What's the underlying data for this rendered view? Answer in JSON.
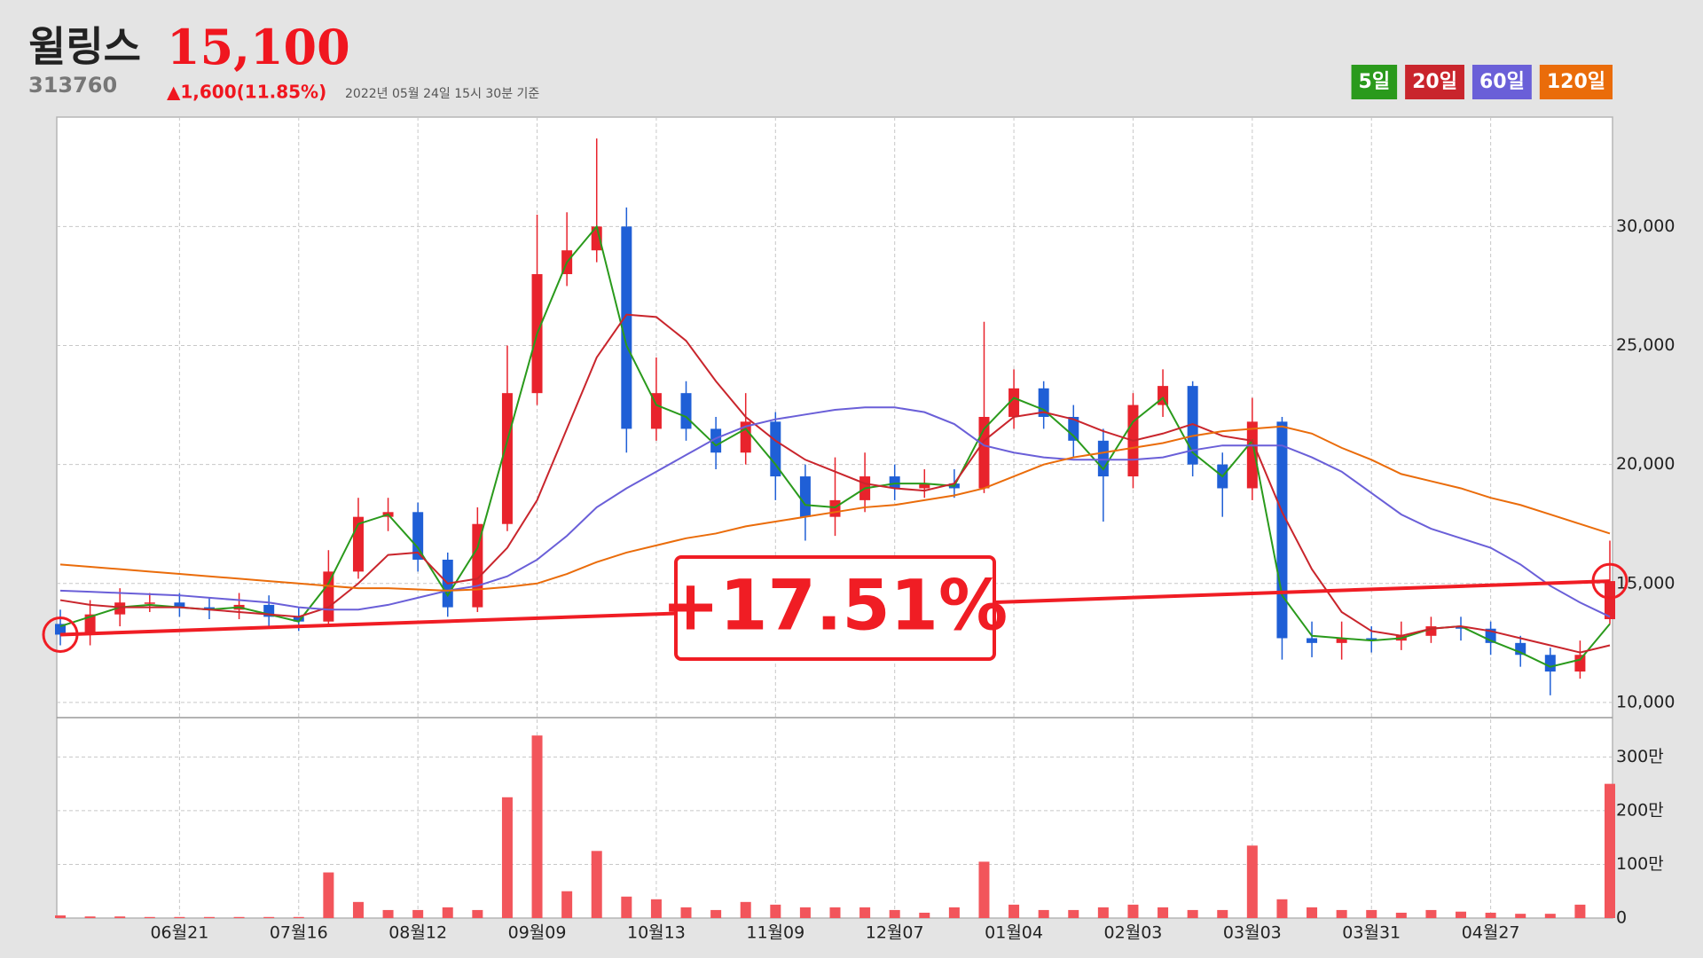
{
  "chart_data": {
    "type": "candlestick",
    "title": "윌링스",
    "price": "15,100",
    "code": "313760",
    "change": "▲1,600(11.85%)",
    "timestamp": "2022년 05월 24일 15시 30분 기준",
    "categories": [
      null,
      null,
      null,
      null,
      "06월21",
      null,
      null,
      null,
      "07월16",
      null,
      null,
      null,
      "08월12",
      null,
      null,
      null,
      "09월09",
      null,
      null,
      null,
      "10월13",
      null,
      null,
      null,
      "11월09",
      null,
      null,
      null,
      "12월07",
      null,
      null,
      null,
      "01월04",
      null,
      null,
      null,
      "02월03",
      null,
      null,
      null,
      "03월03",
      null,
      null,
      null,
      "03월31",
      null,
      null,
      null,
      "04월27",
      null,
      null,
      null,
      null
    ],
    "open": [
      13300,
      12850,
      13700,
      14200,
      14200,
      14000,
      13900,
      14100,
      13600,
      13400,
      15500,
      17800,
      18000,
      16000,
      14000,
      17500,
      23000,
      28000,
      29000,
      30000,
      21500,
      23000,
      21500,
      20500,
      21800,
      19500,
      17800,
      18500,
      19500,
      19000,
      19200,
      19000,
      22000,
      23200,
      22000,
      21000,
      19500,
      22500,
      23300,
      20000,
      19000,
      21800,
      12700,
      12500,
      12700,
      12600,
      12800,
      13200,
      13100,
      12500,
      12000,
      11300,
      13500
    ],
    "high": [
      13900,
      14300,
      14800,
      14600,
      14600,
      14400,
      14600,
      14500,
      14000,
      16400,
      18600,
      18600,
      18400,
      16300,
      18200,
      25000,
      30500,
      30600,
      33700,
      30800,
      24500,
      23500,
      22000,
      23000,
      22200,
      20000,
      20300,
      20500,
      20000,
      19800,
      19800,
      26000,
      24000,
      23500,
      22500,
      21500,
      23000,
      24000,
      23500,
      20500,
      22800,
      22000,
      13400,
      13400,
      13200,
      13400,
      13600,
      13600,
      13400,
      12800,
      12300,
      12600,
      16800
    ],
    "low": [
      12400,
      12400,
      13200,
      13800,
      13600,
      13500,
      13500,
      13200,
      13000,
      13200,
      15200,
      17200,
      15500,
      13600,
      13800,
      17200,
      22500,
      27500,
      28500,
      20500,
      21000,
      21000,
      19800,
      20000,
      18500,
      16800,
      17000,
      18000,
      18500,
      18600,
      18600,
      18800,
      21500,
      21500,
      20300,
      17600,
      19000,
      22000,
      19500,
      17800,
      18500,
      11800,
      11900,
      11800,
      12100,
      12200,
      12500,
      12600,
      12000,
      11500,
      10300,
      11000,
      13300
    ],
    "close": [
      12850,
      13700,
      14200,
      14200,
      14000,
      13900,
      14100,
      13600,
      13400,
      15500,
      17800,
      18000,
      16000,
      14000,
      17500,
      23000,
      28000,
      29000,
      30000,
      21500,
      23000,
      21500,
      20500,
      21800,
      19500,
      17800,
      18500,
      19500,
      19000,
      19200,
      19000,
      22000,
      23200,
      22000,
      21000,
      19500,
      22500,
      23300,
      20000,
      19000,
      21800,
      12700,
      12500,
      12700,
      12600,
      12800,
      13200,
      13100,
      12500,
      12000,
      11300,
      12000,
      15100
    ],
    "up_color": "#e8232c",
    "down_color": "#1f5fd6",
    "series": [
      {
        "name": "5일",
        "color": "#2a9a1c",
        "values": [
          13200,
          13600,
          14000,
          14100,
          14000,
          13900,
          14000,
          13700,
          13400,
          15000,
          17500,
          17900,
          16500,
          14500,
          16500,
          21000,
          25500,
          28500,
          30000,
          25000,
          22500,
          22000,
          20800,
          21500,
          20000,
          18300,
          18200,
          19000,
          19200,
          19200,
          19100,
          21500,
          22800,
          22300,
          21200,
          19800,
          21800,
          22800,
          20500,
          19500,
          21000,
          14500,
          12800,
          12700,
          12600,
          12700,
          13100,
          13200,
          12600,
          12100,
          11500,
          11800,
          13300
        ]
      },
      {
        "name": "20일",
        "color": "#c9252c",
        "values": [
          14300,
          14100,
          14000,
          14000,
          14000,
          13900,
          13800,
          13700,
          13600,
          14000,
          15000,
          16200,
          16300,
          15000,
          15200,
          16500,
          18500,
          21500,
          24500,
          26300,
          26200,
          25200,
          23500,
          22000,
          21000,
          20200,
          19700,
          19200,
          19000,
          18900,
          19200,
          21000,
          22000,
          22200,
          21900,
          21400,
          21000,
          21300,
          21700,
          21200,
          21000,
          18000,
          15600,
          13800,
          13000,
          12800,
          13100,
          13200,
          13000,
          12700,
          12400,
          12100,
          12400
        ]
      },
      {
        "name": "60일",
        "color": "#6a5fd8",
        "values": [
          14700,
          14650,
          14600,
          14550,
          14500,
          14400,
          14300,
          14200,
          14000,
          13900,
          13900,
          14100,
          14400,
          14700,
          14900,
          15300,
          16000,
          17000,
          18200,
          19000,
          19700,
          20400,
          21100,
          21600,
          21900,
          22100,
          22300,
          22400,
          22400,
          22200,
          21700,
          20800,
          20500,
          20300,
          20200,
          20200,
          20200,
          20300,
          20600,
          20800,
          20800,
          20800,
          20300,
          19700,
          18800,
          17900,
          17300,
          16900,
          16500,
          15800,
          14900,
          14200,
          13600
        ]
      },
      {
        "name": "120일",
        "color": "#ea6c0a",
        "values": [
          15800,
          15700,
          15600,
          15500,
          15400,
          15300,
          15200,
          15100,
          15000,
          14900,
          14800,
          14800,
          14750,
          14700,
          14750,
          14850,
          15000,
          15400,
          15900,
          16300,
          16600,
          16900,
          17100,
          17400,
          17600,
          17800,
          18000,
          18200,
          18300,
          18500,
          18700,
          19000,
          19500,
          20000,
          20300,
          20500,
          20700,
          20900,
          21200,
          21400,
          21500,
          21600,
          21300,
          20700,
          20200,
          19600,
          19300,
          19000,
          18600,
          18300,
          17900,
          17500,
          17100
        ]
      }
    ],
    "legend": "top-right",
    "ylim": [
      9400,
      34600
    ],
    "yticks": [
      {
        "value": 10000,
        "label": "10,000"
      },
      {
        "value": 15000,
        "label": "15,000"
      },
      {
        "value": 20000,
        "label": "20,000"
      },
      {
        "value": 25000,
        "label": "25,000"
      },
      {
        "value": 30000,
        "label": "30,000"
      }
    ],
    "grid": true,
    "volume": {
      "color": "#f2555b",
      "values": [
        50000,
        30000,
        30000,
        20000,
        20000,
        20000,
        20000,
        20000,
        20000,
        850000,
        300000,
        150000,
        150000,
        200000,
        150000,
        2250000,
        3400000,
        500000,
        1250000,
        400000,
        350000,
        200000,
        150000,
        300000,
        250000,
        200000,
        200000,
        200000,
        150000,
        100000,
        200000,
        1050000,
        250000,
        150000,
        150000,
        200000,
        250000,
        200000,
        150000,
        150000,
        1350000,
        350000,
        200000,
        150000,
        150000,
        100000,
        150000,
        120000,
        100000,
        80000,
        80000,
        250000,
        2500000
      ],
      "ylim": [
        0,
        3700000
      ],
      "yticks": [
        0,
        {
          "value": 1000000,
          "label": "100만"
        },
        {
          "value": 2000000,
          "label": "200만"
        },
        {
          "value": 3000000,
          "label": "300만"
        }
      ]
    },
    "trend_line": {
      "start": 12850,
      "end": 15100,
      "label": "+17.51%",
      "color": "#f01d24"
    }
  }
}
